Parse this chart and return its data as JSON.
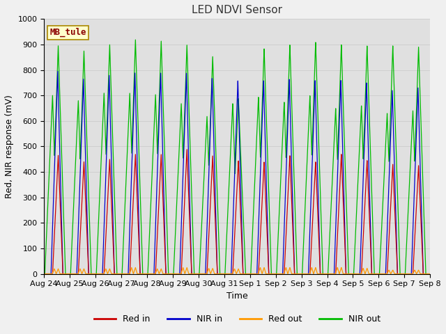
{
  "title": "LED NDVI Sensor",
  "xlabel": "Time",
  "ylabel": "Red, NIR response (mV)",
  "ylim": [
    0,
    1000
  ],
  "label_text": "MB_tule",
  "x_tick_labels": [
    "Aug 24",
    "Aug 25",
    "Aug 26",
    "Aug 27",
    "Aug 28",
    "Aug 29",
    "Aug 30",
    "Aug 31",
    "Sep 1",
    "Sep 2",
    "Sep 3",
    "Sep 4",
    "Sep 5",
    "Sep 6",
    "Sep 7",
    "Sep 8"
  ],
  "colors": {
    "red_in": "#cc0000",
    "nir_in": "#0000cc",
    "red_out": "#ff9900",
    "nir_out": "#00bb00"
  },
  "fig_facecolor": "#f0f0f0",
  "ax_facecolor": "#e0e0e0",
  "legend_labels": [
    "Red in",
    "NIR in",
    "Red out",
    "NIR out"
  ],
  "title_fontsize": 11,
  "axes_label_fontsize": 9,
  "tick_fontsize": 8,
  "peak_heights_red_in": [
    465,
    440,
    450,
    470,
    470,
    490,
    465,
    445,
    440,
    465,
    440,
    470,
    445,
    430,
    425
  ],
  "peak_heights_nir_in": [
    795,
    765,
    780,
    790,
    790,
    790,
    770,
    760,
    760,
    765,
    760,
    760,
    750,
    720,
    730
  ],
  "peak_heights_red_out": [
    20,
    20,
    20,
    25,
    20,
    25,
    22,
    20,
    25,
    25,
    25,
    25,
    22,
    15,
    15
  ],
  "peak_heights_nir_out": [
    895,
    875,
    900,
    920,
    915,
    900,
    855,
    690,
    885,
    900,
    910,
    900,
    895,
    895,
    890
  ],
  "nir_out_plateau": [
    700,
    680,
    710,
    710,
    705,
    670,
    620,
    670,
    695,
    675,
    700,
    650,
    660,
    630,
    640
  ],
  "num_days": 15,
  "grid_color": "#cccccc"
}
